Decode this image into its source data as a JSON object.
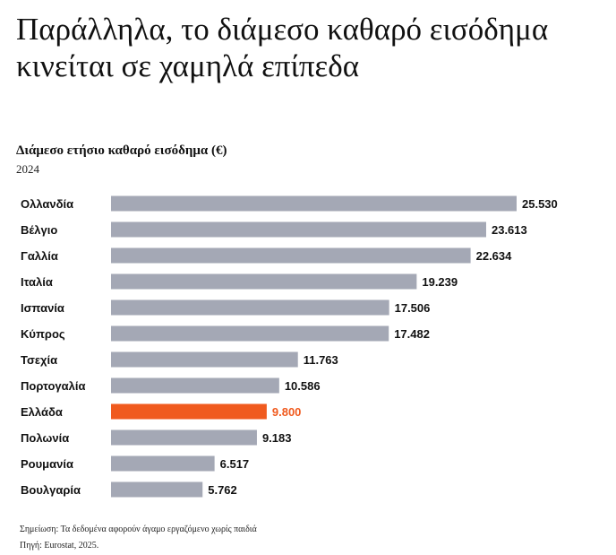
{
  "headline": "Παράλληλα, το διάμεσο καθαρό εισόδημα κινείται σε χαμηλά επίπεδα",
  "colors": {
    "bar": "#a4a8b5",
    "highlight": "#f05a1e",
    "label": "#111111"
  },
  "chart_data": {
    "type": "bar",
    "orientation": "horizontal",
    "title": "Διάμεσο ετήσιο καθαρό εισόδημα (€)",
    "subtitle": "2024",
    "categories": [
      "Ολλανδία",
      "Βέλγιο",
      "Γαλλία",
      "Ιταλία",
      "Ισπανία",
      "Κύπρος",
      "Τσεχία",
      "Πορτογαλία",
      "Ελλάδα",
      "Πολωνία",
      "Ρουμανία",
      "Βουλγαρία"
    ],
    "values": [
      25530,
      23613,
      22634,
      19239,
      17506,
      17482,
      11763,
      10586,
      9800,
      9183,
      6517,
      5762
    ],
    "value_labels": [
      "25.530",
      "23.613",
      "22.634",
      "19.239",
      "17.506",
      "17.482",
      "11.763",
      "10.586",
      "9.800",
      "9.183",
      "6.517",
      "5.762"
    ],
    "highlight": "Ελλάδα",
    "xlim": [
      0,
      25530
    ],
    "grid": false,
    "legend": "none"
  },
  "footer": {
    "note": "Σημείωση: Τα δεδομένα αφορούν άγαμο εργαζόμενο χωρίς παιδιά",
    "source": "Πηγή: Eurostat, 2025."
  }
}
